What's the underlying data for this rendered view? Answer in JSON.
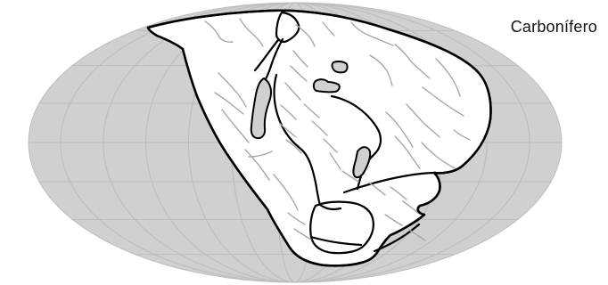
{
  "map": {
    "period_label": "Carbonífero",
    "style": {
      "ocean_fill": "#d0d0d0",
      "land_fill": "#ffffff",
      "graticule_stroke": "#bdbdbd",
      "coast_stroke": "#000000",
      "river_stroke": "#a7a7a7"
    }
  }
}
